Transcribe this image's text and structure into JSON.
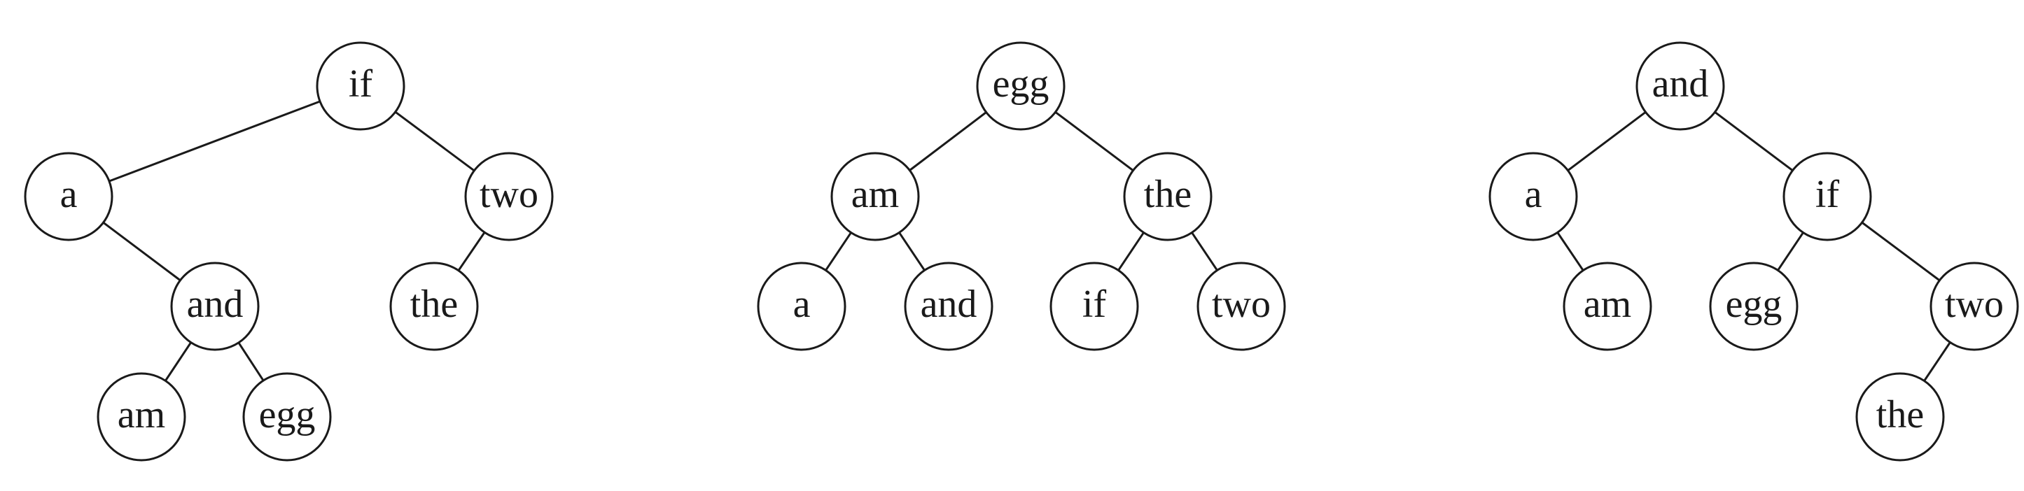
{
  "colors": {
    "stroke": "#1a1a1a",
    "background": "#ffffff"
  },
  "trees": [
    {
      "nodes": [
        {
          "id": "if",
          "label": "if"
        },
        {
          "id": "a",
          "label": "a"
        },
        {
          "id": "two",
          "label": "two"
        },
        {
          "id": "and",
          "label": "and"
        },
        {
          "id": "the",
          "label": "the"
        },
        {
          "id": "am",
          "label": "am"
        },
        {
          "id": "egg",
          "label": "egg"
        }
      ],
      "edges": [
        [
          "if",
          "a"
        ],
        [
          "if",
          "two"
        ],
        [
          "a",
          "and"
        ],
        [
          "two",
          "the"
        ],
        [
          "and",
          "am"
        ],
        [
          "and",
          "egg"
        ]
      ]
    },
    {
      "nodes": [
        {
          "id": "egg",
          "label": "egg"
        },
        {
          "id": "am",
          "label": "am"
        },
        {
          "id": "the",
          "label": "the"
        },
        {
          "id": "a",
          "label": "a"
        },
        {
          "id": "and",
          "label": "and"
        },
        {
          "id": "if",
          "label": "if"
        },
        {
          "id": "two",
          "label": "two"
        }
      ],
      "edges": [
        [
          "egg",
          "am"
        ],
        [
          "egg",
          "the"
        ],
        [
          "am",
          "a"
        ],
        [
          "am",
          "and"
        ],
        [
          "the",
          "if"
        ],
        [
          "the",
          "two"
        ]
      ]
    },
    {
      "nodes": [
        {
          "id": "and",
          "label": "and"
        },
        {
          "id": "a",
          "label": "a"
        },
        {
          "id": "if",
          "label": "if"
        },
        {
          "id": "am",
          "label": "am"
        },
        {
          "id": "egg",
          "label": "egg"
        },
        {
          "id": "two",
          "label": "two"
        },
        {
          "id": "the",
          "label": "the"
        }
      ],
      "edges": [
        [
          "and",
          "a"
        ],
        [
          "and",
          "if"
        ],
        [
          "a",
          "am"
        ],
        [
          "if",
          "egg"
        ],
        [
          "if",
          "two"
        ],
        [
          "two",
          "the"
        ]
      ]
    }
  ]
}
